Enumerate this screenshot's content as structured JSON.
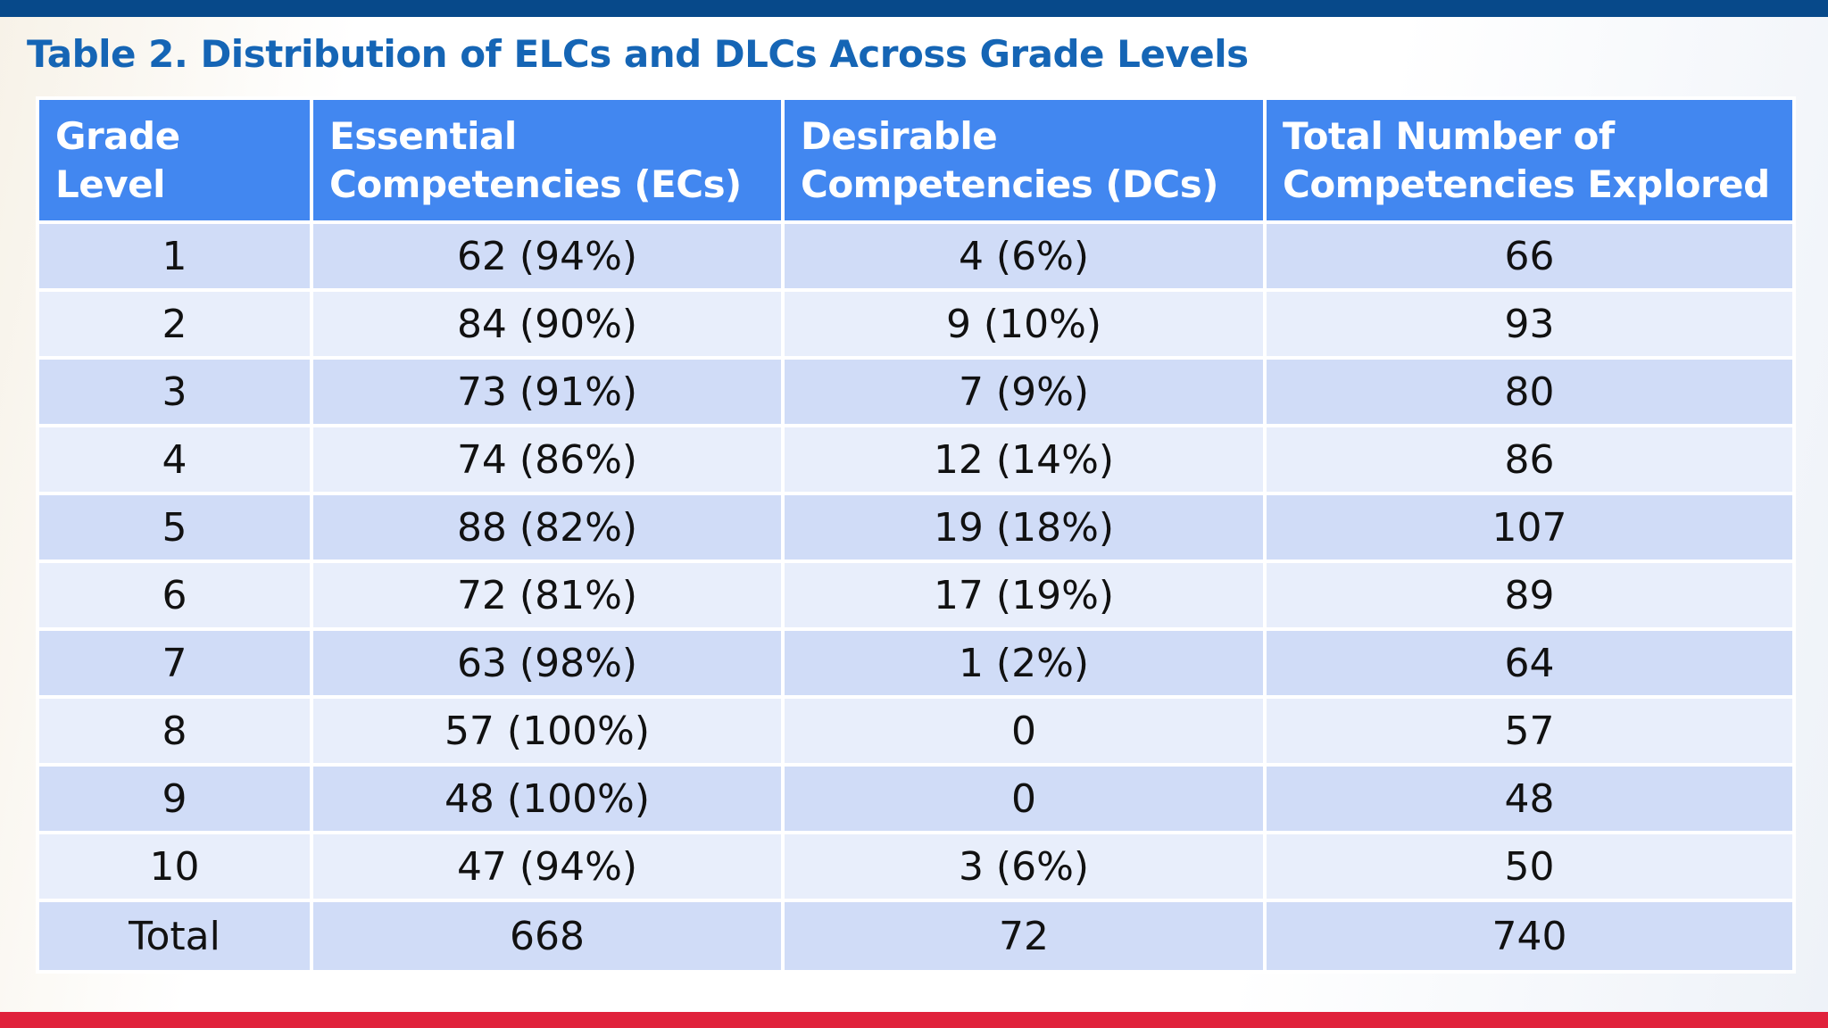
{
  "title": "Table 2. Distribution of ELCs and DLCs Across Grade Levels",
  "colors": {
    "top_bar": "#07498a",
    "bottom_bar": "#e0223c",
    "title": "#1565b5",
    "header_bg": "#4287f0",
    "row_dark": "#d0dcf7",
    "row_light": "#e8eefb"
  },
  "table": {
    "headers": {
      "grade": "Grade Level",
      "essential": "Essential Competencies (ECs)",
      "desirable": "Desirable Competencies (DCs)",
      "total": "Total Number of Competencies Explored"
    },
    "rows": [
      {
        "grade": "1",
        "essential": "62 (94%)",
        "desirable": "4 (6%)",
        "total": "66"
      },
      {
        "grade": "2",
        "essential": "84 (90%)",
        "desirable": "9 (10%)",
        "total": "93"
      },
      {
        "grade": "3",
        "essential": "73 (91%)",
        "desirable": "7 (9%)",
        "total": "80"
      },
      {
        "grade": "4",
        "essential": "74 (86%)",
        "desirable": "12 (14%)",
        "total": "86"
      },
      {
        "grade": "5",
        "essential": "88 (82%)",
        "desirable": "19 (18%)",
        "total": "107"
      },
      {
        "grade": "6",
        "essential": "72 (81%)",
        "desirable": "17 (19%)",
        "total": "89"
      },
      {
        "grade": "7",
        "essential": "63 (98%)",
        "desirable": "1 (2%)",
        "total": "64"
      },
      {
        "grade": "8",
        "essential": "57 (100%)",
        "desirable": "0",
        "total": "57"
      },
      {
        "grade": "9",
        "essential": "48 (100%)",
        "desirable": "0",
        "total": "48"
      },
      {
        "grade": "10",
        "essential": "47 (94%)",
        "desirable": "3 (6%)",
        "total": "50"
      }
    ],
    "total_row": {
      "label": "Total",
      "essential": "668",
      "desirable": "72",
      "total": "740"
    }
  }
}
